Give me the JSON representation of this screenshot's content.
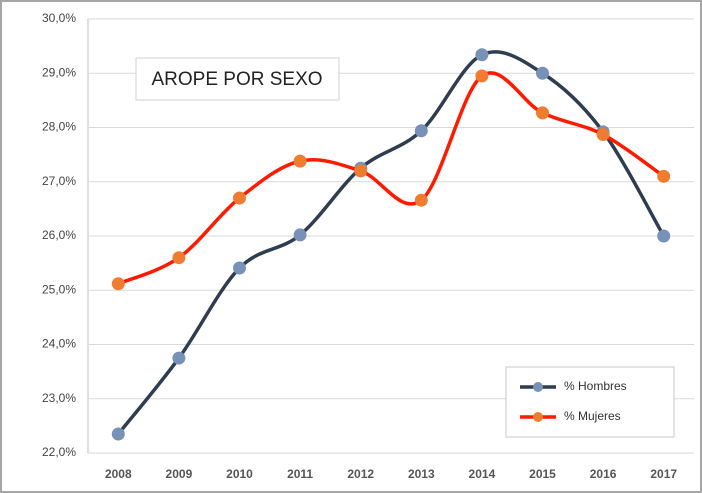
{
  "chart_data": {
    "type": "line",
    "title": "AROPE POR SEXO",
    "categories": [
      "2008",
      "2009",
      "2010",
      "2011",
      "2012",
      "2013",
      "2014",
      "2015",
      "2016",
      "2017"
    ],
    "series": [
      {
        "name": "% Hombres",
        "color": "#2e3d50",
        "marker_color": "#7891b8",
        "values": [
          22.35,
          23.75,
          25.41,
          26.02,
          27.25,
          27.94,
          29.34,
          29.0,
          27.92,
          26.0
        ]
      },
      {
        "name": "% Mujeres",
        "color": "#ff1a00",
        "marker_color": "#ee7d31",
        "values": [
          25.12,
          25.6,
          26.7,
          27.38,
          27.2,
          26.66,
          28.95,
          28.27,
          27.87,
          27.1
        ]
      }
    ],
    "ylim": [
      22,
      30
    ],
    "yticks": [
      {
        "value": 22,
        "label": "22,0%"
      },
      {
        "value": 23,
        "label": "23,0%"
      },
      {
        "value": 24,
        "label": "24,0%"
      },
      {
        "value": 25,
        "label": "25,0%"
      },
      {
        "value": 26,
        "label": "26,0%"
      },
      {
        "value": 27,
        "label": "27,0%"
      },
      {
        "value": 28,
        "label": "28,0%"
      },
      {
        "value": 29,
        "label": "29,0%"
      },
      {
        "value": 30,
        "label": "30,0%"
      }
    ],
    "grid": true,
    "legend": "bottom-right"
  }
}
